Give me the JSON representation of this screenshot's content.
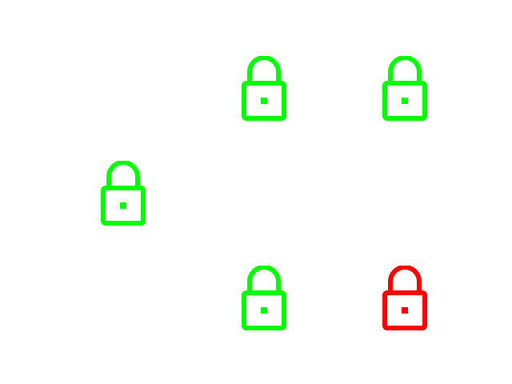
{
  "colors": {
    "locked_green": "#00ff00",
    "locked_red": "#ff0000",
    "background": "#ffffff"
  },
  "locks": [
    {
      "icon": "lock-icon",
      "color": "#00ff00"
    },
    {
      "icon": "lock-icon",
      "color": "#00ff00"
    },
    {
      "icon": "lock-icon",
      "color": "#00ff00"
    },
    {
      "icon": "lock-icon",
      "color": "#00ff00"
    },
    {
      "icon": "lock-icon",
      "color": "#ff0000"
    }
  ]
}
